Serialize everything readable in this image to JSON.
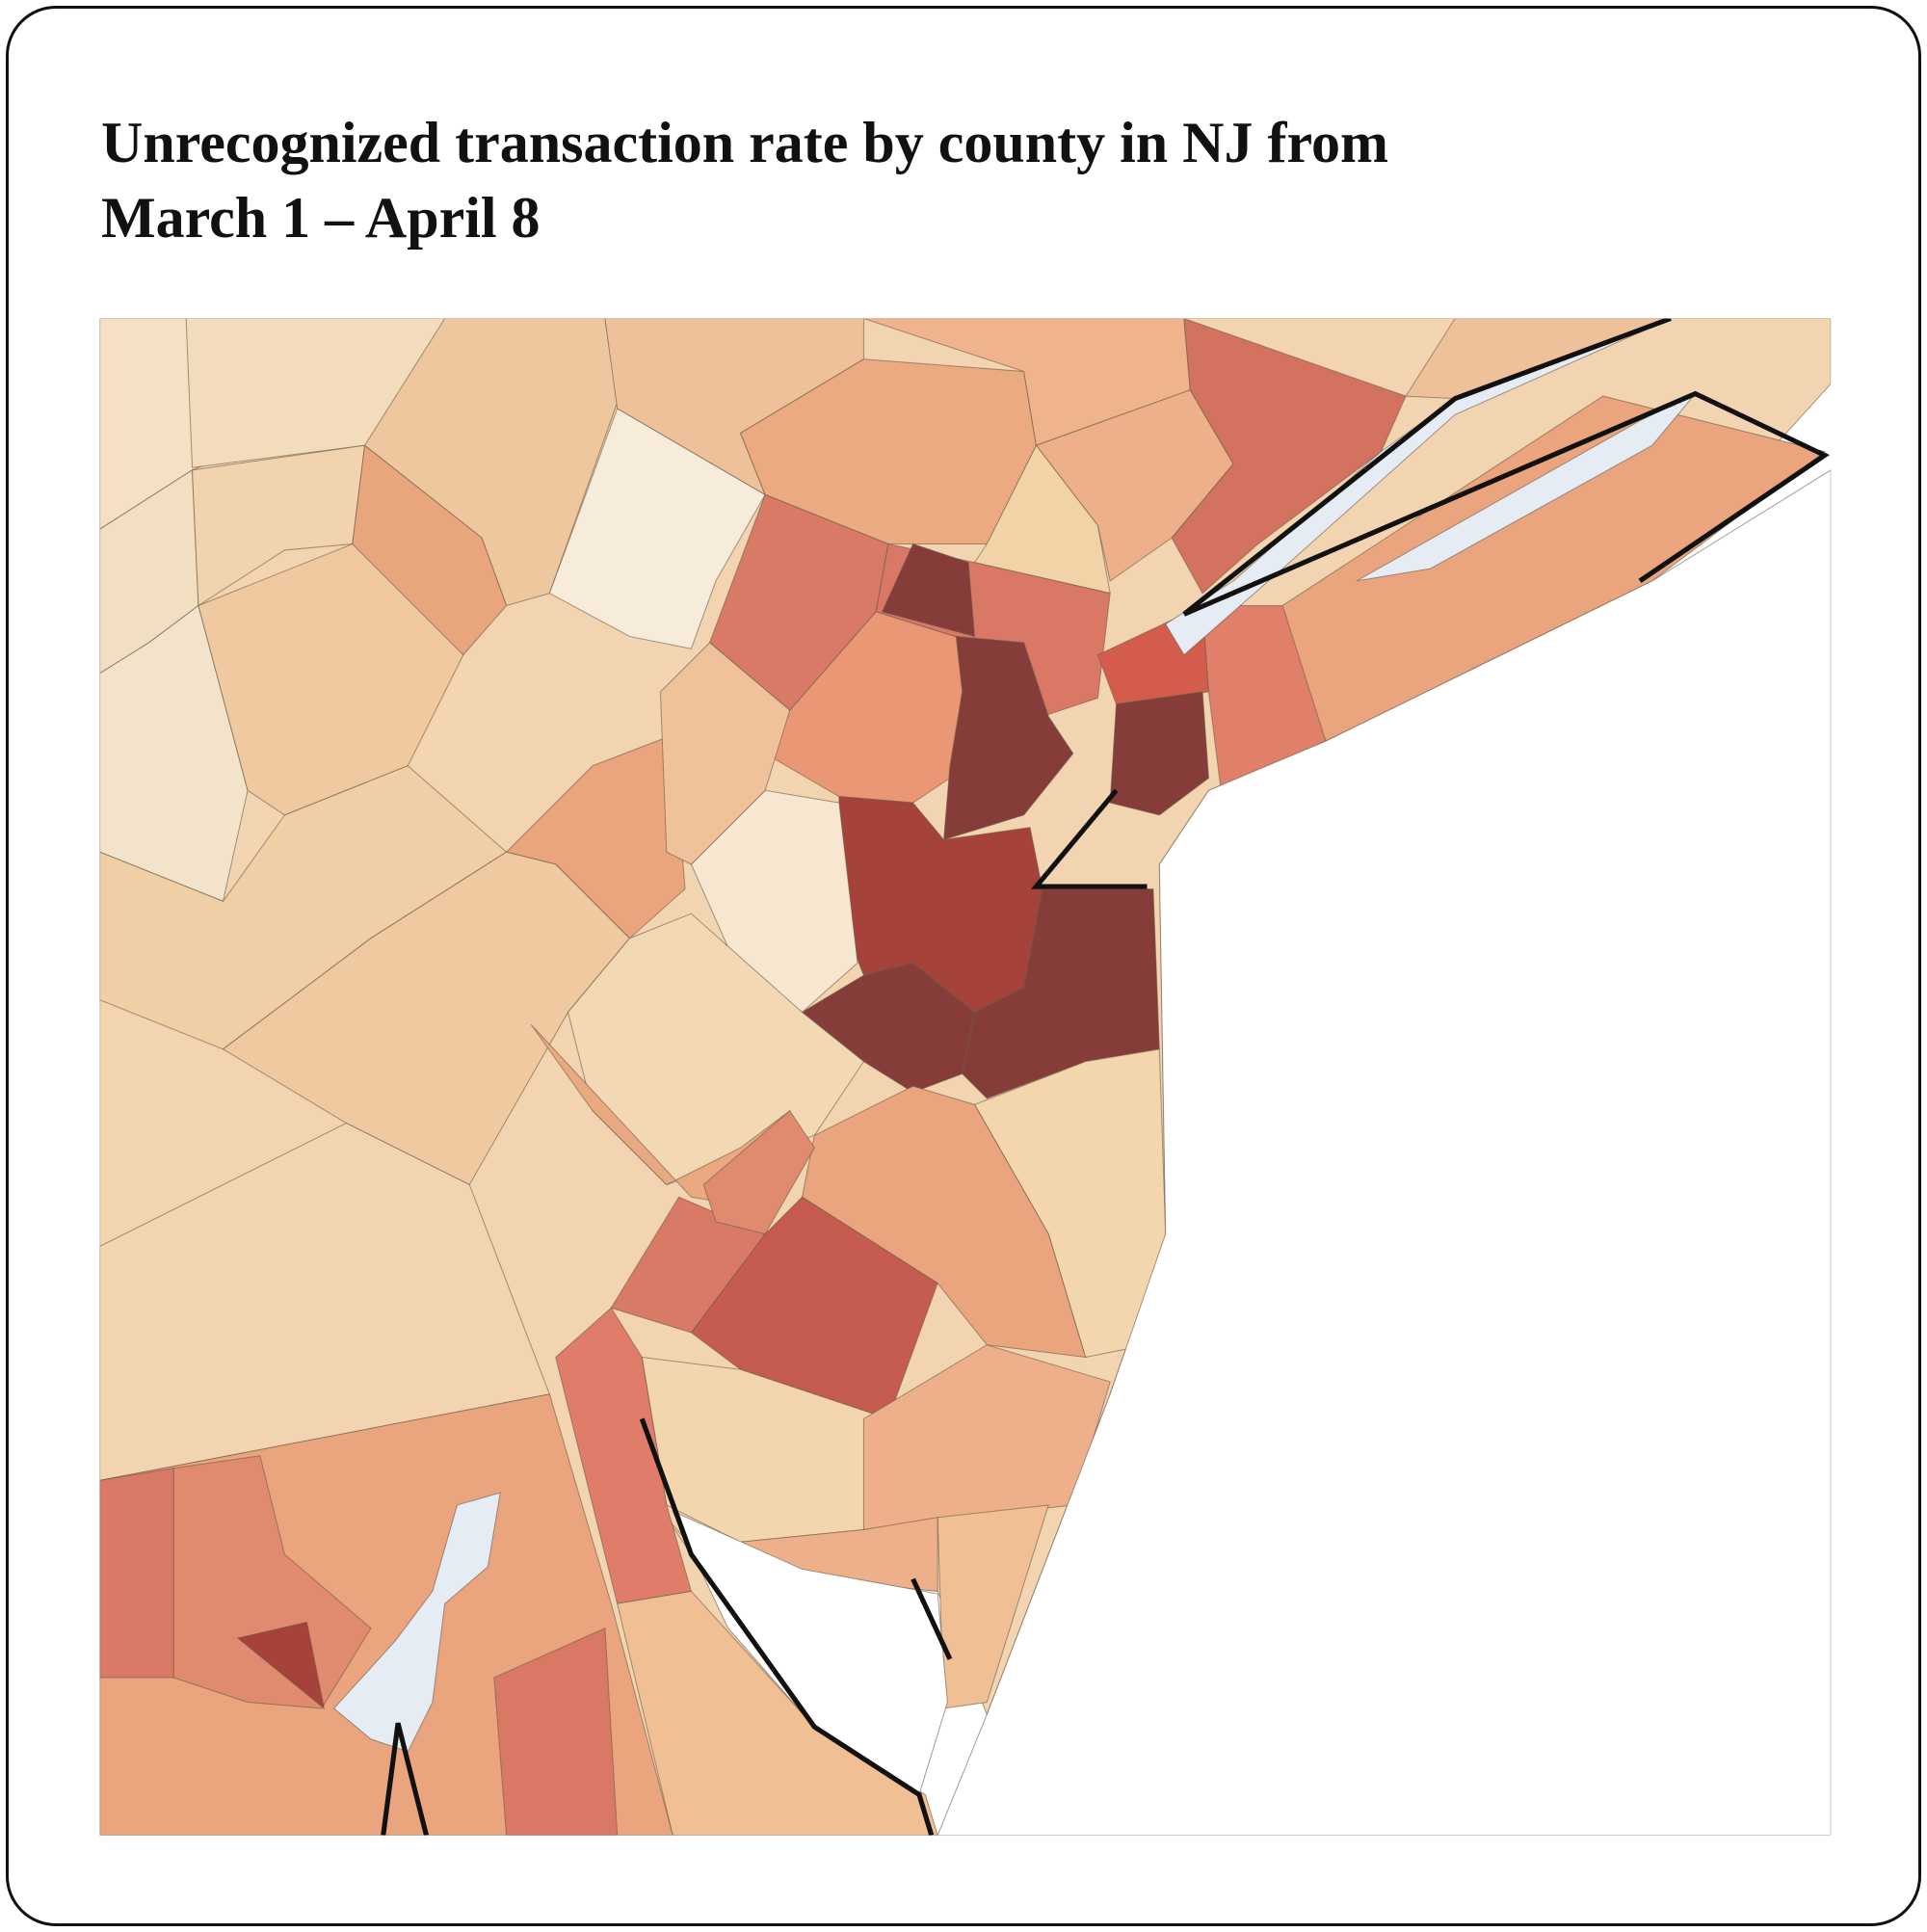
{
  "title": "Unrecognized transaction rate by county in NJ from March 1 – April 8"
}
